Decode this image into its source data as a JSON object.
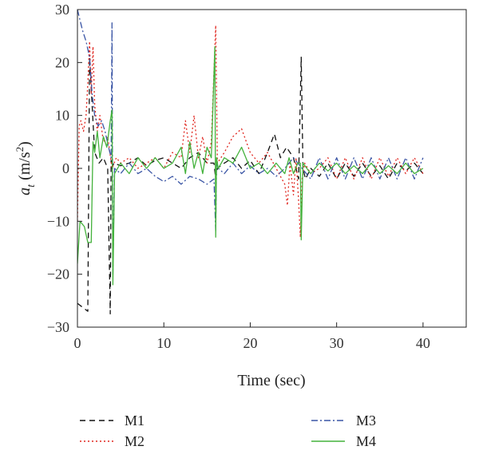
{
  "chart_data": {
    "type": "line",
    "xlabel": "Time (sec)",
    "ylabel": "a_t (m/s^2)",
    "ylabel_parts": {
      "sym": "a",
      "sub": "t",
      "unit_open": " (m/s",
      "sup": "2",
      "unit_close": ")"
    },
    "xlim": [
      0,
      45
    ],
    "ylim": [
      -30,
      30
    ],
    "x_ticks": [
      0,
      10,
      20,
      30,
      40
    ],
    "y_ticks": [
      30,
      20,
      10,
      0,
      -10,
      -20,
      -30
    ],
    "x_tick_labels": [
      "0",
      "10",
      "20",
      "30",
      "40"
    ],
    "y_tick_labels": [
      "30",
      "20",
      "10",
      "0",
      "−10",
      "−20",
      "−30"
    ],
    "grid": false,
    "legend_position": "below",
    "series": [
      {
        "name": "M1",
        "color": "#111111",
        "dash": "dashed",
        "x": [
          0,
          1.2,
          1.4,
          1.6,
          2.0,
          2.5,
          3.0,
          3.5,
          3.8,
          3.9,
          4.0,
          4.2,
          5,
          6,
          7,
          8,
          9,
          10,
          11,
          12,
          13,
          14,
          15,
          15.8,
          16.0,
          16.2,
          17,
          18,
          19,
          20,
          21,
          22,
          22.8,
          23.5,
          24.2,
          25,
          25.6,
          25.9,
          26.1,
          26.4,
          27,
          28,
          29,
          30,
          31,
          32,
          33,
          34,
          35,
          36,
          37,
          38,
          39,
          40
        ],
        "y": [
          -25.5,
          -27,
          21,
          15,
          3,
          1,
          2,
          0,
          -27.5,
          1.5,
          0,
          1,
          0.5,
          1,
          2,
          0.5,
          1.5,
          2,
          1,
          0,
          2,
          3,
          1,
          1,
          -2,
          0,
          1,
          2,
          0,
          1.5,
          -1,
          3,
          6.5,
          2,
          4,
          2,
          -2,
          21,
          0,
          -2,
          0,
          -1.5,
          1,
          -2,
          1,
          -1.5,
          1,
          -1.5,
          0.5,
          -2,
          1,
          -0.5,
          1,
          -1
        ]
      },
      {
        "name": "M2",
        "color": "#e0261f",
        "dash": "dotted",
        "x": [
          0,
          0.2,
          0.4,
          0.7,
          1.0,
          1.2,
          1.4,
          1.6,
          1.8,
          2.0,
          2.3,
          2.6,
          3.0,
          3.5,
          4.0,
          4.5,
          5,
          6,
          7,
          8,
          9,
          10,
          11,
          12,
          12.5,
          13,
          13.5,
          14,
          14.5,
          15,
          15.5,
          16.0,
          16.2,
          17,
          18,
          19,
          20,
          21,
          22,
          23,
          24,
          24.3,
          24.6,
          25,
          25.3,
          25.6,
          25.8,
          26.0,
          26.3,
          27,
          28,
          29,
          30,
          31,
          32,
          33,
          34,
          35,
          36,
          37,
          38,
          39,
          40
        ],
        "y": [
          -10,
          8,
          9,
          7,
          10,
          16,
          24,
          14,
          23,
          12,
          7,
          10,
          5,
          6,
          0,
          2,
          1,
          2,
          0,
          1,
          2,
          0,
          3,
          2,
          9,
          3,
          10,
          2,
          6,
          1,
          5,
          27,
          1,
          3,
          6,
          7.5,
          3,
          1,
          3,
          0,
          -3,
          -7,
          1,
          -5,
          2,
          -6,
          -13,
          -2,
          1,
          -1,
          0,
          2,
          -2,
          2,
          -2,
          2,
          -2,
          2,
          -1.5,
          2,
          -1,
          2,
          -1
        ]
      },
      {
        "name": "M3",
        "color": "#3a55a5",
        "dash": "dashdot",
        "x": [
          0,
          0.3,
          0.6,
          1.0,
          1.4,
          1.7,
          2.0,
          2.4,
          2.8,
          3.2,
          3.6,
          3.9,
          4.0,
          4.1,
          4.3,
          5,
          6,
          7,
          8,
          9,
          10,
          11,
          12,
          13,
          14,
          15,
          15.8,
          16.0,
          16.1,
          16.3,
          17,
          18,
          19,
          20,
          21,
          22,
          23,
          24,
          25,
          26,
          27,
          28,
          29,
          30,
          31,
          32,
          33,
          34,
          35,
          36,
          37,
          38,
          39,
          40
        ],
        "y": [
          30,
          28,
          26,
          24,
          21,
          14,
          10,
          8,
          9,
          7,
          4,
          2,
          27.5,
          -20,
          0,
          -1,
          1,
          -1,
          0,
          -1.5,
          -2.5,
          -1.5,
          -3,
          -1.5,
          -2,
          -3,
          -2,
          -12,
          1,
          0,
          -1,
          1,
          -1,
          0.5,
          -1,
          0,
          -1.5,
          0,
          2,
          0,
          -2,
          2,
          -2,
          2,
          -2,
          2,
          -2,
          2,
          -2,
          2,
          -2,
          2,
          -2,
          2
        ]
      },
      {
        "name": "M4",
        "color": "#44b23c",
        "dash": "solid",
        "x": [
          0,
          0.3,
          0.8,
          1.2,
          1.6,
          1.8,
          2.0,
          2.3,
          2.6,
          3.0,
          3.4,
          3.8,
          4.0,
          4.1,
          4.3,
          5,
          6,
          7,
          8,
          9,
          10,
          11,
          12,
          12.5,
          13,
          13.5,
          14,
          14.5,
          15,
          15.5,
          15.9,
          16.0,
          16.1,
          16.3,
          17,
          18,
          19,
          20,
          21,
          22,
          23,
          24,
          24.5,
          25,
          25.5,
          25.8,
          25.9,
          26.1,
          27,
          28,
          29,
          30,
          31,
          32,
          33,
          34,
          35,
          36,
          37,
          38,
          39,
          40
        ],
        "y": [
          -18,
          -10,
          -11,
          -14,
          -14,
          5,
          3,
          7,
          2,
          6,
          4,
          9,
          11,
          -22,
          -1,
          1,
          -1,
          2,
          0,
          2,
          0,
          1,
          4,
          -1,
          5,
          0,
          3,
          -1,
          4,
          2,
          23,
          -13,
          2,
          0,
          2,
          1,
          4,
          0,
          1,
          -1,
          1,
          -1,
          2,
          -1,
          1,
          1,
          -13.5,
          1,
          -1,
          1,
          -0.5,
          1,
          -1,
          0.5,
          -1,
          1,
          -1,
          0.5,
          -1,
          1,
          -1,
          0
        ]
      }
    ]
  }
}
